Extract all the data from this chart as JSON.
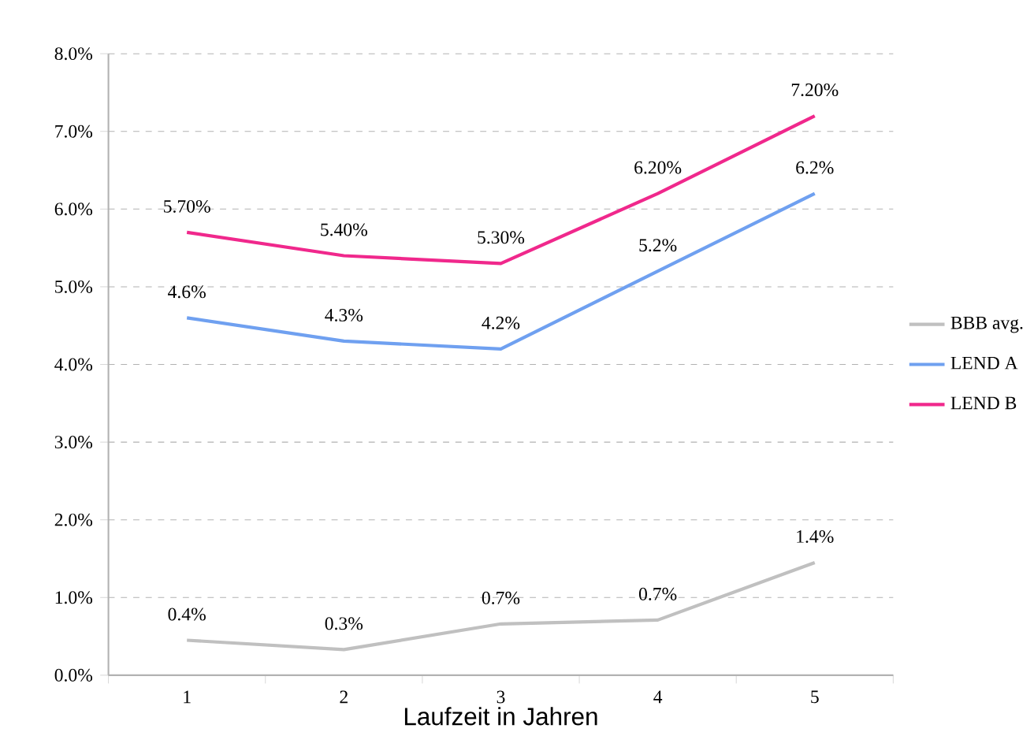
{
  "chart_data": {
    "type": "line",
    "xlabel": "Laufzeit in Jahren",
    "categories": [
      "1",
      "2",
      "3",
      "4",
      "5"
    ],
    "series": [
      {
        "name": "BBB avg.",
        "color": "#c0c0c0",
        "values": [
          0.45,
          0.33,
          0.66,
          0.71,
          1.45
        ],
        "value_labels": [
          "0.4%",
          "0.3%",
          "0.7%",
          "0.7%",
          "1.4%"
        ]
      },
      {
        "name": "LEND A",
        "color": "#6fa0f0",
        "values": [
          4.6,
          4.3,
          4.2,
          5.2,
          6.2
        ],
        "value_labels": [
          "4.6%",
          "4.3%",
          "4.2%",
          "5.2%",
          "6.2%"
        ]
      },
      {
        "name": "LEND B",
        "color": "#f0288c",
        "values": [
          5.7,
          5.4,
          5.3,
          6.2,
          7.2
        ],
        "value_labels": [
          "5.70%",
          "5.40%",
          "5.30%",
          "6.20%",
          "7.20%"
        ]
      }
    ],
    "ylim": [
      0,
      8
    ],
    "yticks": [
      {
        "value": 0,
        "label": "0.0%"
      },
      {
        "value": 1,
        "label": "1.0%"
      },
      {
        "value": 2,
        "label": "2.0%"
      },
      {
        "value": 3,
        "label": "3.0%"
      },
      {
        "value": 4,
        "label": "4.0%"
      },
      {
        "value": 5,
        "label": "5.0%"
      },
      {
        "value": 6,
        "label": "6.0%"
      },
      {
        "value": 7,
        "label": "7.0%"
      },
      {
        "value": 8,
        "label": "8.0%"
      }
    ],
    "grid": "y",
    "legend": "right",
    "marker": "none",
    "line_style": "solid"
  }
}
